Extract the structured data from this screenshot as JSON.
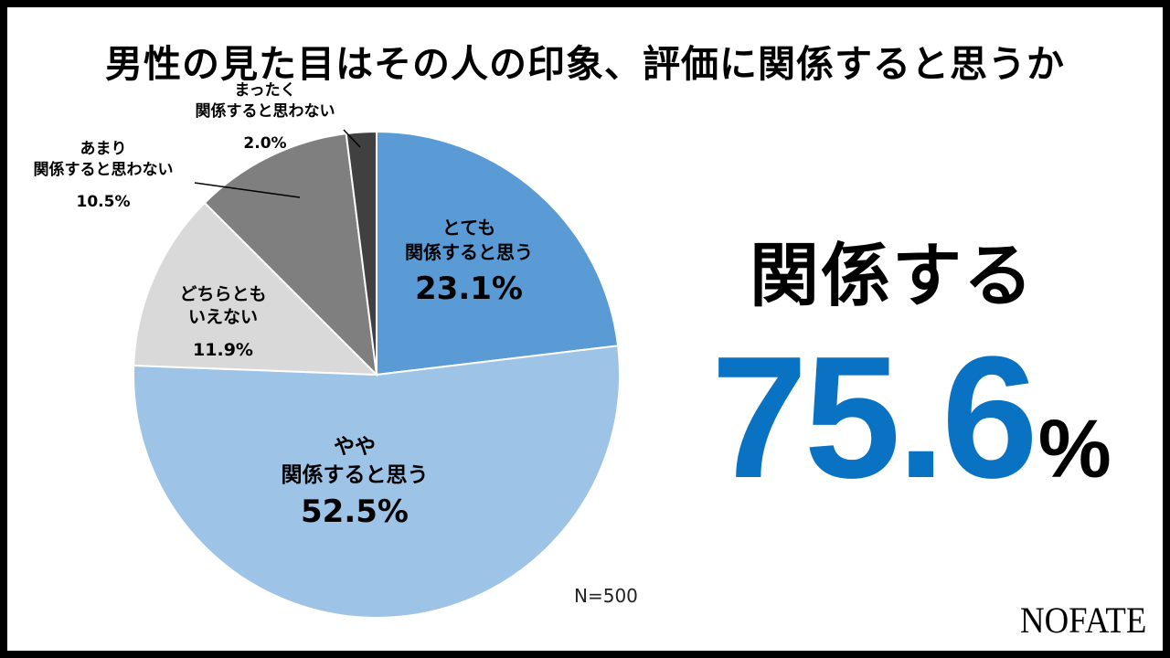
{
  "title": "男性の見た目はその人の印象、評価に関係すると思うか",
  "note": "N=500",
  "summary": {
    "label": "関係する",
    "value": "75.6",
    "unit": "%"
  },
  "logo": "NOFATE",
  "chart_data": {
    "type": "pie",
    "title": "男性の見た目はその人の印象、評価に関係すると思うか",
    "start_angle": "12 o'clock",
    "direction": "clockwise",
    "slices": [
      {
        "lines": [
          "とても",
          "関係すると思う"
        ],
        "pct_label": "23.1%",
        "value": 23.1,
        "color": "#5b9bd5",
        "label_style": "inside-large"
      },
      {
        "lines": [
          "やや",
          "関係すると思う"
        ],
        "pct_label": "52.5%",
        "value": 52.5,
        "color": "#9dc3e6",
        "label_style": "inside-large"
      },
      {
        "lines": [
          "どちらとも",
          "いえない"
        ],
        "pct_label": "11.9%",
        "value": 11.9,
        "color": "#d9d9d9",
        "label_style": "inside-small"
      },
      {
        "lines": [
          "あまり",
          "関係すると思わない"
        ],
        "pct_label": "10.5%",
        "value": 10.5,
        "color": "#7f7f7f",
        "label_style": "outside"
      },
      {
        "lines": [
          "まったく",
          "関係すると思わない"
        ],
        "pct_label": "2.0%",
        "value": 2.0,
        "color": "#404040",
        "label_style": "outside"
      }
    ]
  }
}
